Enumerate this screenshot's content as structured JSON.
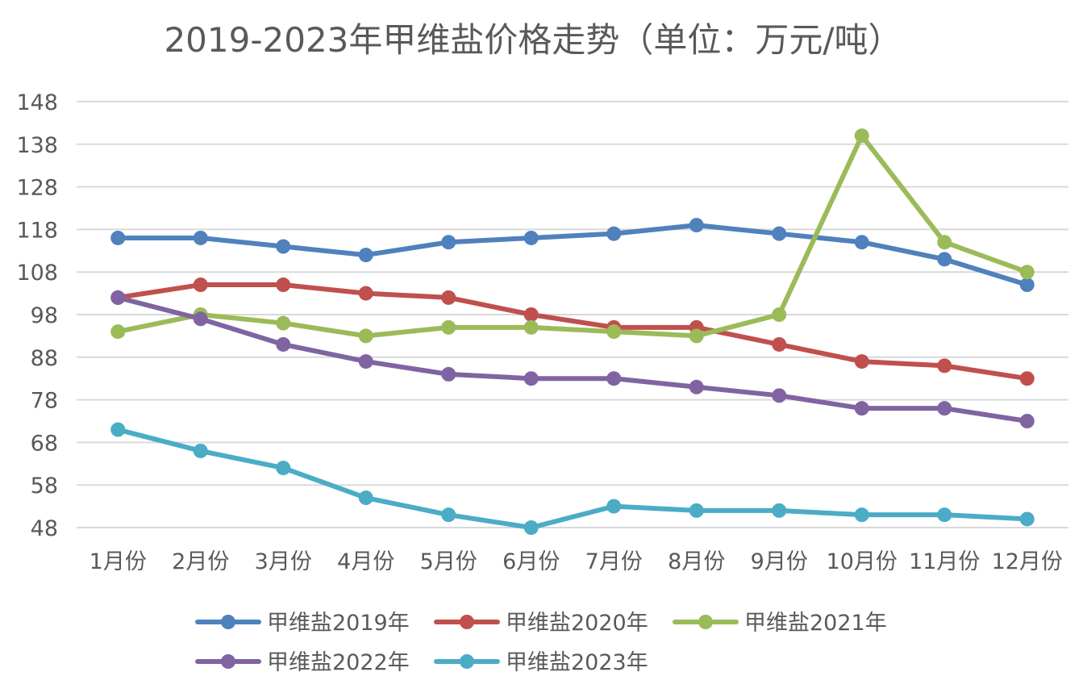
{
  "chart_data": {
    "type": "line",
    "title": "2019-2023年甲维盐价格走势（单位：万元/吨）",
    "xlabel": "",
    "ylabel": "",
    "categories": [
      "1月份",
      "2月份",
      "3月份",
      "4月份",
      "5月份",
      "6月份",
      "7月份",
      "8月份",
      "9月份",
      "10月份",
      "11月份",
      "12月份"
    ],
    "yticks": [
      48,
      58,
      68,
      78,
      88,
      98,
      108,
      118,
      128,
      138,
      148
    ],
    "ylim": [
      48,
      148
    ],
    "grid": true,
    "legend_position": "bottom",
    "series": [
      {
        "name": "甲维盐2019年",
        "color": "#4f81bd",
        "values": [
          116,
          116,
          114,
          112,
          115,
          116,
          117,
          119,
          117,
          115,
          111,
          105
        ]
      },
      {
        "name": "甲维盐2020年",
        "color": "#c0504d",
        "values": [
          102,
          105,
          105,
          103,
          102,
          98,
          95,
          95,
          91,
          87,
          86,
          83
        ]
      },
      {
        "name": "甲维盐2021年",
        "color": "#9bbb59",
        "values": [
          94,
          98,
          96,
          93,
          95,
          95,
          94,
          93,
          98,
          140,
          115,
          108
        ]
      },
      {
        "name": "甲维盐2022年",
        "color": "#8064a2",
        "values": [
          102,
          97,
          91,
          87,
          84,
          83,
          83,
          81,
          79,
          76,
          76,
          73
        ]
      },
      {
        "name": "甲维盐2023年",
        "color": "#4bacc6",
        "values": [
          71,
          66,
          62,
          55,
          51,
          48,
          53,
          52,
          52,
          51,
          51,
          50
        ]
      }
    ]
  }
}
